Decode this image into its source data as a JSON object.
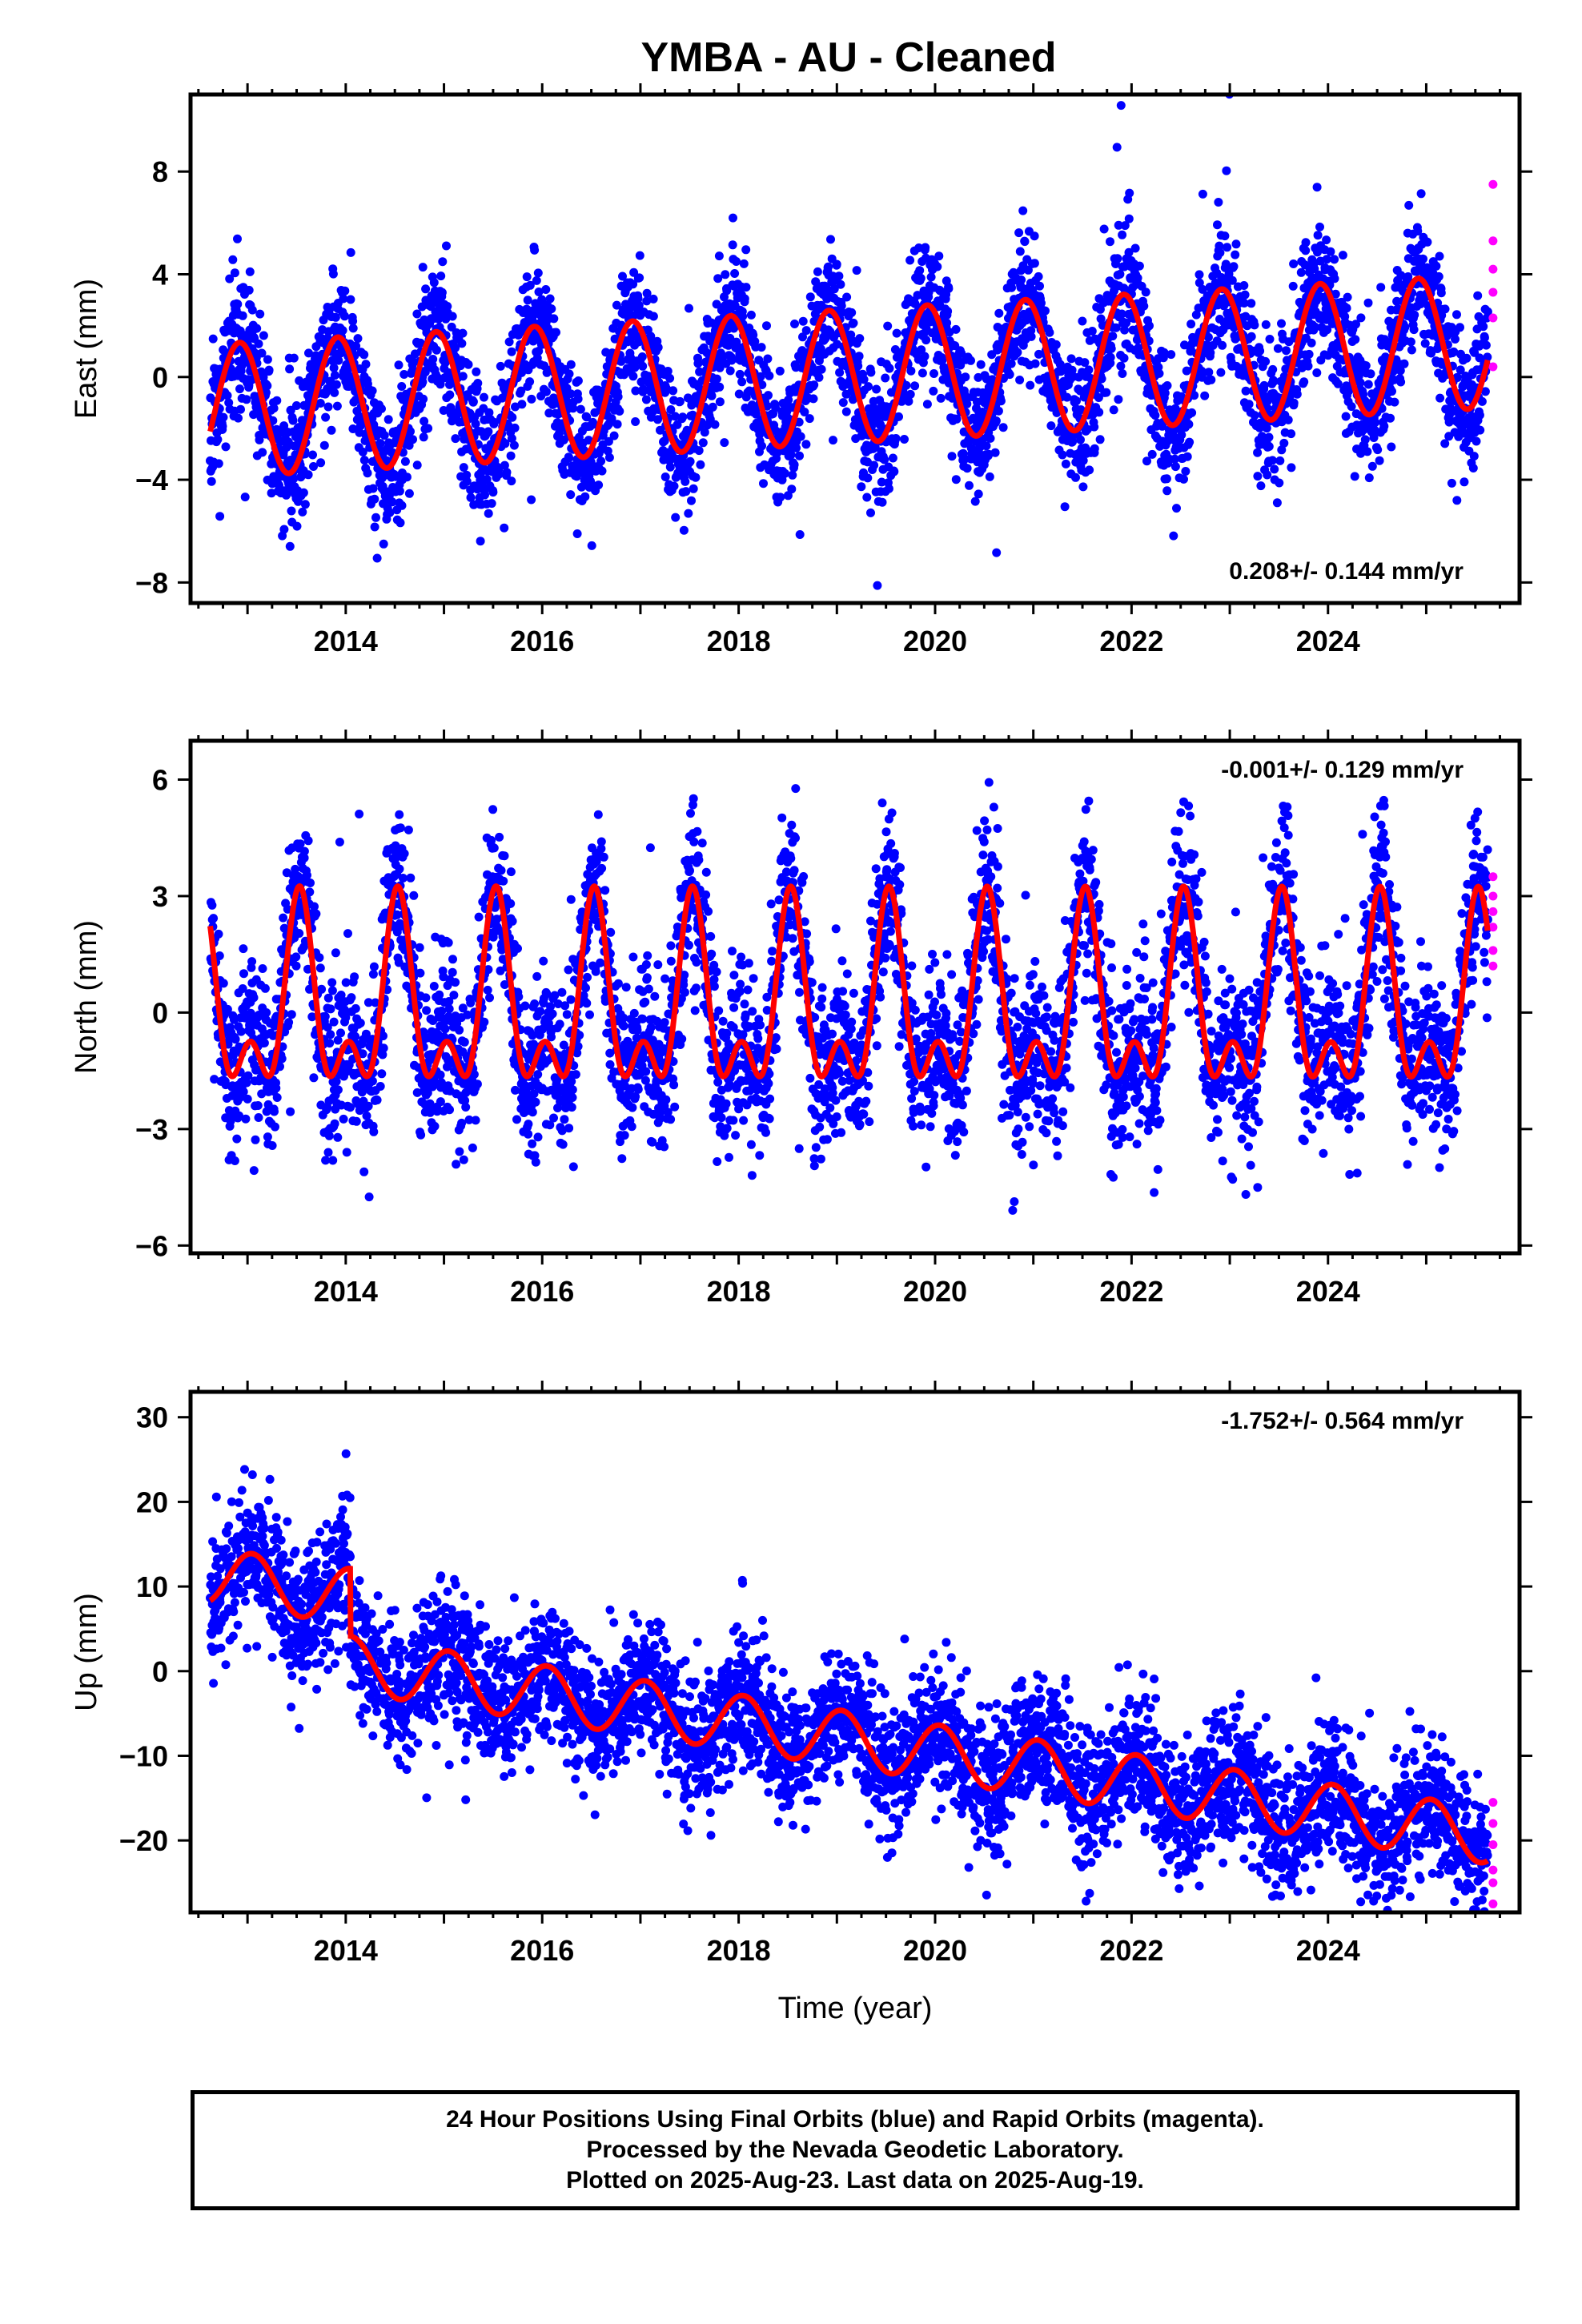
{
  "title": "YMBA  - AU - Cleaned",
  "footer": {
    "line1": "24 Hour Positions Using Final Orbits (blue) and Rapid Orbits (magenta).",
    "line2": "Processed by the Nevada Geodetic Laboratory.",
    "line3": "Plotted on 2025-Aug-23. Last data on 2025-Aug-19."
  },
  "colors": {
    "final": "#0000ff",
    "rapid": "#ff00ff",
    "model": "#ff0000",
    "frame": "#000000"
  },
  "chart_data": [
    {
      "type": "scatter",
      "component": "east",
      "ylabel": "East (mm)",
      "xlabel": "",
      "rate": "0.208+/- 0.144 mm/yr",
      "xlim": [
        2012.42,
        2025.95
      ],
      "ylim": [
        -8.8,
        11
      ],
      "xticks": [
        2014,
        2016,
        2018,
        2020,
        2022,
        2024
      ],
      "yticks": [
        -8,
        -4,
        0,
        4,
        8
      ],
      "ytick_labels": [
        "−8",
        "−4",
        "0",
        "4",
        "8"
      ],
      "model": {
        "offset": 0.05,
        "trend": 0.208,
        "t0": 2019.2,
        "annual_amp": 2.6,
        "annual_peak": 2012.92,
        "semi_amp": 0,
        "semi_peak": 0,
        "steps": []
      },
      "scatter_sd": 1.3,
      "seed": 11,
      "rapid_points": [
        [
          2025.68,
          7.5
        ],
        [
          2025.68,
          5.3
        ],
        [
          2025.68,
          4.2
        ],
        [
          2025.68,
          3.3
        ],
        [
          2025.68,
          2.3
        ],
        [
          2025.68,
          0.4
        ]
      ]
    },
    {
      "type": "scatter",
      "component": "north",
      "ylabel": "North (mm)",
      "xlabel": "",
      "rate": "-0.001+/- 0.129 mm/yr",
      "xlim": [
        2012.42,
        2025.95
      ],
      "ylim": [
        -6.2,
        7
      ],
      "xticks": [
        2014,
        2016,
        2018,
        2020,
        2022,
        2024
      ],
      "yticks": [
        -6,
        -3,
        0,
        3,
        6
      ],
      "ytick_labels": [
        "−6",
        "−3",
        "0",
        "3",
        "6"
      ],
      "model": {
        "offset": 0.0,
        "trend": -0.001,
        "t0": 2019.2,
        "annual_amp": 2.0,
        "annual_peak": 2013.53,
        "semi_amp": 1.25,
        "semi_peak": 2013.53,
        "steps": []
      },
      "scatter_sd": 1.05,
      "seed": 23,
      "rapid_points": [
        [
          2025.68,
          3.5
        ],
        [
          2025.68,
          3.0
        ],
        [
          2025.68,
          2.6
        ],
        [
          2025.68,
          2.2
        ],
        [
          2025.68,
          1.6
        ],
        [
          2025.68,
          1.2
        ]
      ]
    },
    {
      "type": "scatter",
      "component": "up",
      "ylabel": "Up (mm)",
      "xlabel": "Time (year)",
      "rate": "-1.752+/- 0.564 mm/yr",
      "xlim": [
        2012.42,
        2025.95
      ],
      "ylim": [
        -28.5,
        33
      ],
      "xticks": [
        2014,
        2016,
        2018,
        2020,
        2022,
        2024
      ],
      "yticks": [
        -20,
        -10,
        0,
        10,
        20,
        30
      ],
      "ytick_labels": [
        "−20",
        "−10",
        "0",
        "10",
        "20",
        "30"
      ],
      "model": {
        "offset": -0.2,
        "trend": -1.752,
        "t0": 2019.2,
        "annual_amp": 3.3,
        "annual_peak": 2013.05,
        "semi_amp": 0,
        "semi_peak": 0,
        "steps": [
          [
            2014.05,
            -8.0
          ]
        ]
      },
      "scatter_sd": 4.0,
      "seed": 37,
      "rapid_points": [
        [
          2025.68,
          -15.5
        ],
        [
          2025.68,
          -18.0
        ],
        [
          2025.68,
          -20.5
        ],
        [
          2025.68,
          -23.5
        ],
        [
          2025.68,
          -25.0
        ],
        [
          2025.68,
          -27.5
        ]
      ]
    }
  ]
}
